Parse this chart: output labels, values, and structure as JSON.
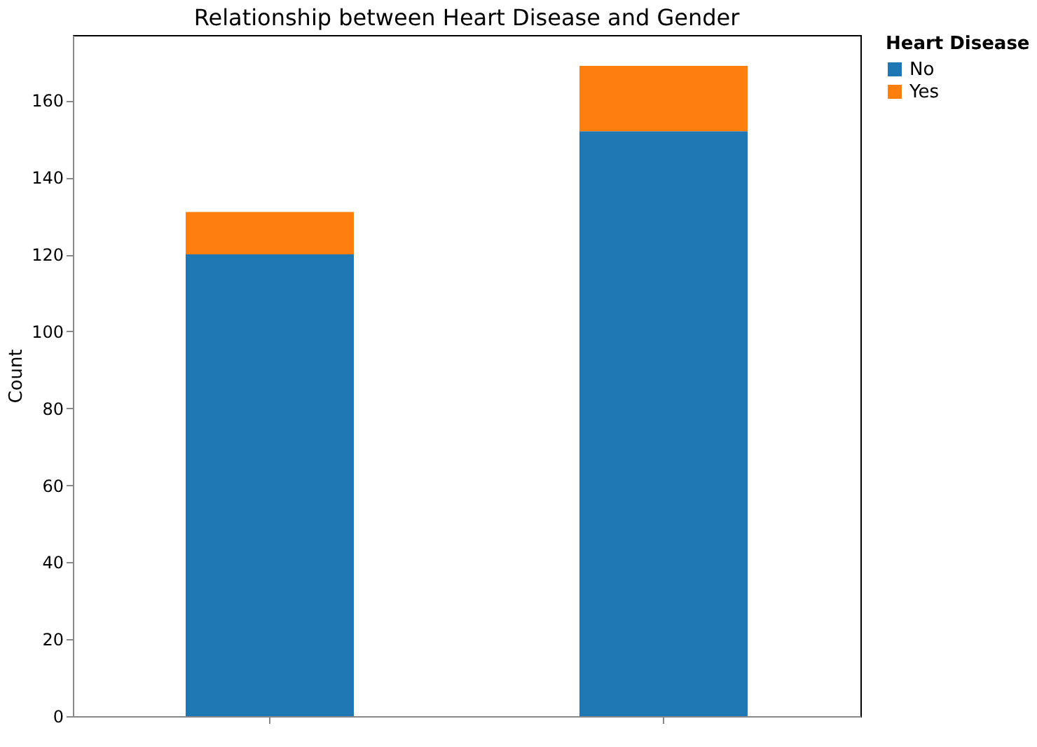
{
  "chart_data": {
    "type": "bar",
    "title": "Relationship between Heart Disease and Gender",
    "ylabel": "Count",
    "legend_title": "Heart Disease",
    "categories": [
      null,
      null
    ],
    "series": [
      {
        "name": "No",
        "color": "#1f77b4",
        "values": [
          120,
          152
        ]
      },
      {
        "name": "Yes",
        "color": "#ff7f0e",
        "values": [
          11,
          17
        ]
      }
    ],
    "stacked": true,
    "ylim": [
      0,
      177
    ],
    "yticks": [
      0,
      20,
      40,
      60,
      80,
      100,
      120,
      140,
      160
    ],
    "grid": false,
    "legend": "top right"
  }
}
